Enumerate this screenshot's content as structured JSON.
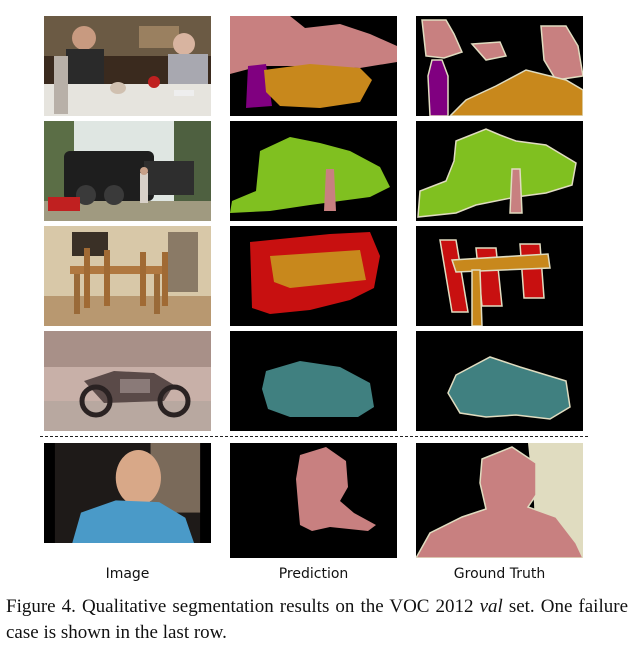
{
  "figure": {
    "columns": [
      "Image",
      "Prediction",
      "Ground Truth"
    ],
    "rows": [
      {
        "scene": "dinner-table-people",
        "classes": [
          "person",
          "bottle",
          "dining table"
        ]
      },
      {
        "scene": "steam-train",
        "classes": [
          "train",
          "person"
        ]
      },
      {
        "scene": "dining-chairs",
        "classes": [
          "chair",
          "dining table"
        ]
      },
      {
        "scene": "motorbike",
        "classes": [
          "motorbike"
        ]
      },
      {
        "scene": "smiling-person",
        "classes": [
          "person"
        ],
        "failure_case": true
      }
    ],
    "colors": {
      "person": "#c88080",
      "bottle": "#800080",
      "dining_table": "#c8881c",
      "train": "#80c020",
      "chair": "#c81010",
      "motorbike": "#408080",
      "void": "#e0dcc0",
      "background": "#000000"
    }
  },
  "caption": {
    "prefix": "Figure 4. Qualitative segmentation results on the VOC 2012",
    "ital": "val",
    "suffix": "set. One failure case is shown in the last row."
  }
}
